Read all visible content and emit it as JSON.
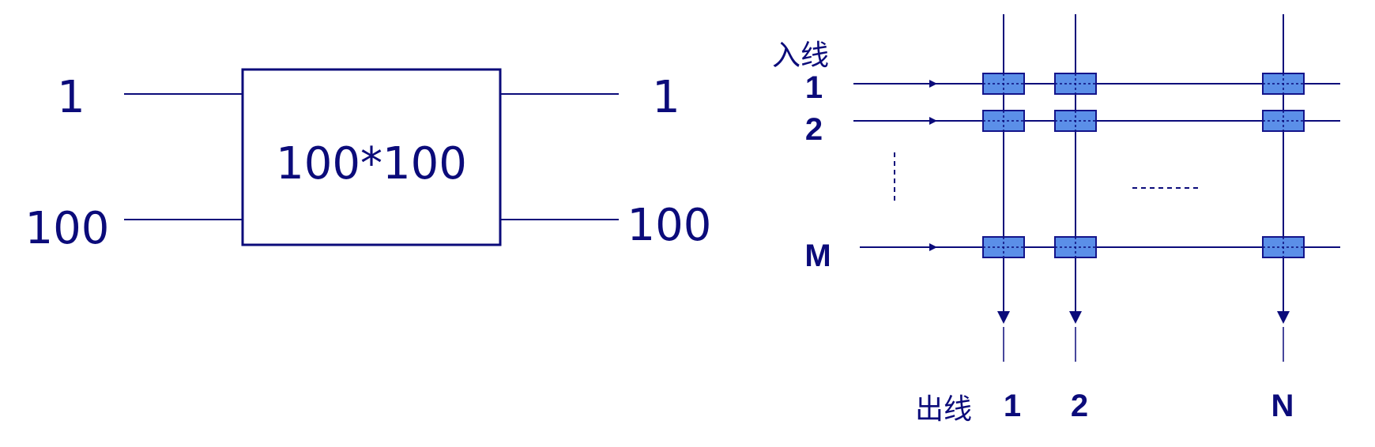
{
  "colors": {
    "line": "#0b0b7a",
    "node_fill": "#5b8fe8",
    "node_stroke": "#14148a",
    "background": "#ffffff"
  },
  "left_diagram": {
    "box_label": "100*100",
    "inputs": [
      "1",
      "100"
    ],
    "outputs": [
      "1",
      "100"
    ]
  },
  "right_diagram": {
    "input_title": "入线",
    "output_title": "出线",
    "row_labels": [
      "1",
      "2",
      "M"
    ],
    "column_labels": [
      "1",
      "2",
      "N"
    ]
  }
}
